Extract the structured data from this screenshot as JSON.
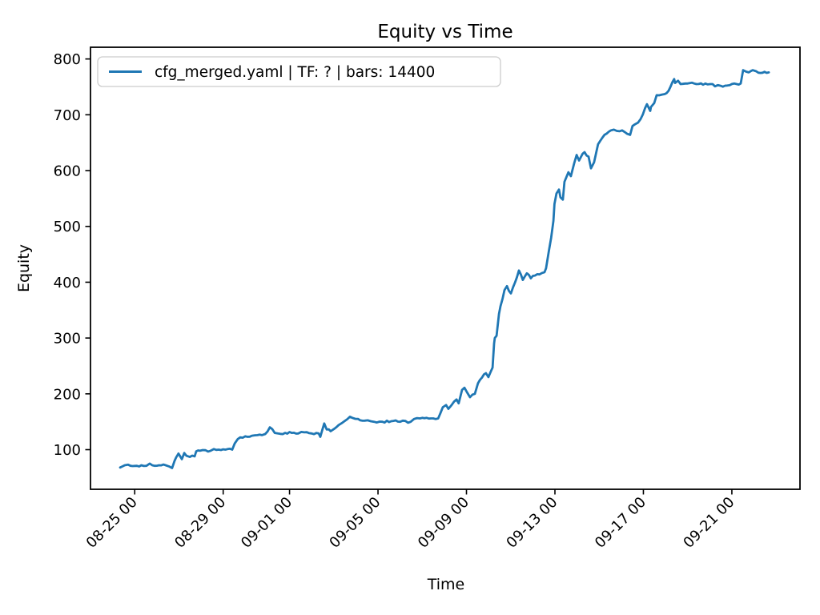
{
  "figure": {
    "background": "#ffffff",
    "axes_color": "#000000"
  },
  "chart_data": {
    "type": "line",
    "title": "Equity vs Time",
    "xlabel": "Time",
    "ylabel": "Equity",
    "grid": false,
    "legend": {
      "position": "upper left",
      "entries": [
        {
          "label": "cfg_merged.yaml | TF: ? | bars: 14400",
          "color": "#1f77b4"
        }
      ]
    },
    "x_axis": {
      "kind": "datetime",
      "xlim_days": [
        0,
        32.08
      ],
      "ticks": [
        {
          "day": 2,
          "label": "08-25 00"
        },
        {
          "day": 6,
          "label": "08-29 00"
        },
        {
          "day": 9,
          "label": "09-01 00"
        },
        {
          "day": 13,
          "label": "09-05 00"
        },
        {
          "day": 17,
          "label": "09-09 00"
        },
        {
          "day": 21,
          "label": "09-13 00"
        },
        {
          "day": 25,
          "label": "09-17 00"
        },
        {
          "day": 29,
          "label": "09-21 00"
        }
      ],
      "tick_rotation_deg": 45
    },
    "y_axis": {
      "ylim": [
        29,
        821
      ],
      "ticks": [
        100,
        200,
        300,
        400,
        500,
        600,
        700,
        800
      ]
    },
    "noise_amplitude": 2,
    "series": [
      {
        "name": "cfg_merged.yaml | TF: ? | bars: 14400",
        "color": "#1f77b4",
        "line_width": 2.8,
        "points": [
          [
            1.34,
            68
          ],
          [
            1.45,
            70
          ],
          [
            1.55,
            72
          ],
          [
            1.7,
            73
          ],
          [
            1.81,
            71
          ],
          [
            2.1,
            71
          ],
          [
            2.3,
            72
          ],
          [
            2.53,
            71
          ],
          [
            2.68,
            75
          ],
          [
            2.79,
            72
          ],
          [
            3.1,
            72
          ],
          [
            3.4,
            72
          ],
          [
            3.55,
            70
          ],
          [
            3.69,
            67
          ],
          [
            3.8,
            80
          ],
          [
            3.87,
            86
          ],
          [
            3.98,
            93
          ],
          [
            4.13,
            83
          ],
          [
            4.24,
            94
          ],
          [
            4.34,
            89
          ],
          [
            4.49,
            87
          ],
          [
            4.71,
            88
          ],
          [
            4.78,
            97
          ],
          [
            4.95,
            98
          ],
          [
            5.2,
            99
          ],
          [
            5.43,
            98
          ],
          [
            5.58,
            101
          ],
          [
            5.8,
            100
          ],
          [
            6.1,
            100
          ],
          [
            6.41,
            100
          ],
          [
            6.52,
            111
          ],
          [
            6.66,
            119
          ],
          [
            6.77,
            122
          ],
          [
            7.0,
            124
          ],
          [
            7.3,
            125
          ],
          [
            7.55,
            126
          ],
          [
            7.75,
            126
          ],
          [
            7.9,
            128
          ],
          [
            8.11,
            140
          ],
          [
            8.33,
            130
          ],
          [
            8.47,
            129
          ],
          [
            8.8,
            130
          ],
          [
            9.1,
            130
          ],
          [
            9.4,
            129
          ],
          [
            9.67,
            131
          ],
          [
            10.0,
            129
          ],
          [
            10.32,
            129
          ],
          [
            10.39,
            123
          ],
          [
            10.57,
            147
          ],
          [
            10.68,
            136
          ],
          [
            10.86,
            133
          ],
          [
            11.01,
            137
          ],
          [
            11.22,
            144
          ],
          [
            11.48,
            151
          ],
          [
            11.73,
            159
          ],
          [
            11.84,
            157
          ],
          [
            12.1,
            155
          ],
          [
            12.4,
            152
          ],
          [
            12.67,
            151
          ],
          [
            12.82,
            150
          ],
          [
            13.2,
            150
          ],
          [
            13.6,
            151
          ],
          [
            14.0,
            150
          ],
          [
            14.48,
            150
          ],
          [
            14.63,
            155
          ],
          [
            14.9,
            156
          ],
          [
            15.2,
            157
          ],
          [
            15.5,
            156
          ],
          [
            15.72,
            156
          ],
          [
            15.82,
            165
          ],
          [
            15.93,
            176
          ],
          [
            16.08,
            180
          ],
          [
            16.18,
            173
          ],
          [
            16.44,
            186
          ],
          [
            16.55,
            190
          ],
          [
            16.65,
            183
          ],
          [
            16.8,
            207
          ],
          [
            16.91,
            211
          ],
          [
            17.16,
            194
          ],
          [
            17.38,
            200
          ],
          [
            17.52,
            219
          ],
          [
            17.7,
            229
          ],
          [
            17.88,
            237
          ],
          [
            17.99,
            230
          ],
          [
            18.1,
            240
          ],
          [
            18.18,
            247
          ],
          [
            18.25,
            290
          ],
          [
            18.28,
            300
          ],
          [
            18.36,
            304
          ],
          [
            18.47,
            343
          ],
          [
            18.54,
            357
          ],
          [
            18.72,
            386
          ],
          [
            18.83,
            393
          ],
          [
            19.01,
            380
          ],
          [
            19.2,
            400
          ],
          [
            19.37,
            421
          ],
          [
            19.55,
            404
          ],
          [
            19.73,
            416
          ],
          [
            19.91,
            407
          ],
          [
            20.1,
            412
          ],
          [
            20.3,
            414
          ],
          [
            20.53,
            418
          ],
          [
            20.6,
            425
          ],
          [
            20.72,
            455
          ],
          [
            20.83,
            480
          ],
          [
            20.93,
            510
          ],
          [
            20.98,
            540
          ],
          [
            21.07,
            559
          ],
          [
            21.18,
            566
          ],
          [
            21.25,
            552
          ],
          [
            21.36,
            548
          ],
          [
            21.43,
            580
          ],
          [
            21.61,
            597
          ],
          [
            21.72,
            590
          ],
          [
            21.87,
            613
          ],
          [
            21.98,
            628
          ],
          [
            22.09,
            618
          ],
          [
            22.25,
            630
          ],
          [
            22.34,
            633
          ],
          [
            22.52,
            625
          ],
          [
            22.63,
            604
          ],
          [
            22.77,
            615
          ],
          [
            22.95,
            647
          ],
          [
            23.24,
            664
          ],
          [
            23.53,
            672
          ],
          [
            23.8,
            671
          ],
          [
            24.04,
            672
          ],
          [
            24.26,
            666
          ],
          [
            24.4,
            664
          ],
          [
            24.51,
            680
          ],
          [
            24.62,
            683
          ],
          [
            24.76,
            686
          ],
          [
            24.98,
            701
          ],
          [
            25.16,
            719
          ],
          [
            25.31,
            707
          ],
          [
            25.34,
            714
          ],
          [
            25.49,
            721
          ],
          [
            25.6,
            735
          ],
          [
            25.96,
            737
          ],
          [
            26.14,
            743
          ],
          [
            26.32,
            759
          ],
          [
            26.39,
            764
          ],
          [
            26.43,
            757
          ],
          [
            26.57,
            761
          ],
          [
            26.68,
            755
          ],
          [
            27.0,
            756
          ],
          [
            27.4,
            755
          ],
          [
            27.8,
            756
          ],
          [
            28.13,
            755
          ],
          [
            28.24,
            751
          ],
          [
            28.49,
            752
          ],
          [
            28.9,
            753
          ],
          [
            29.22,
            755
          ],
          [
            29.4,
            756
          ],
          [
            29.51,
            780
          ],
          [
            29.76,
            776
          ],
          [
            29.94,
            780
          ],
          [
            30.1,
            778
          ],
          [
            30.3,
            775
          ],
          [
            30.48,
            777
          ],
          [
            30.67,
            776
          ]
        ]
      }
    ]
  }
}
